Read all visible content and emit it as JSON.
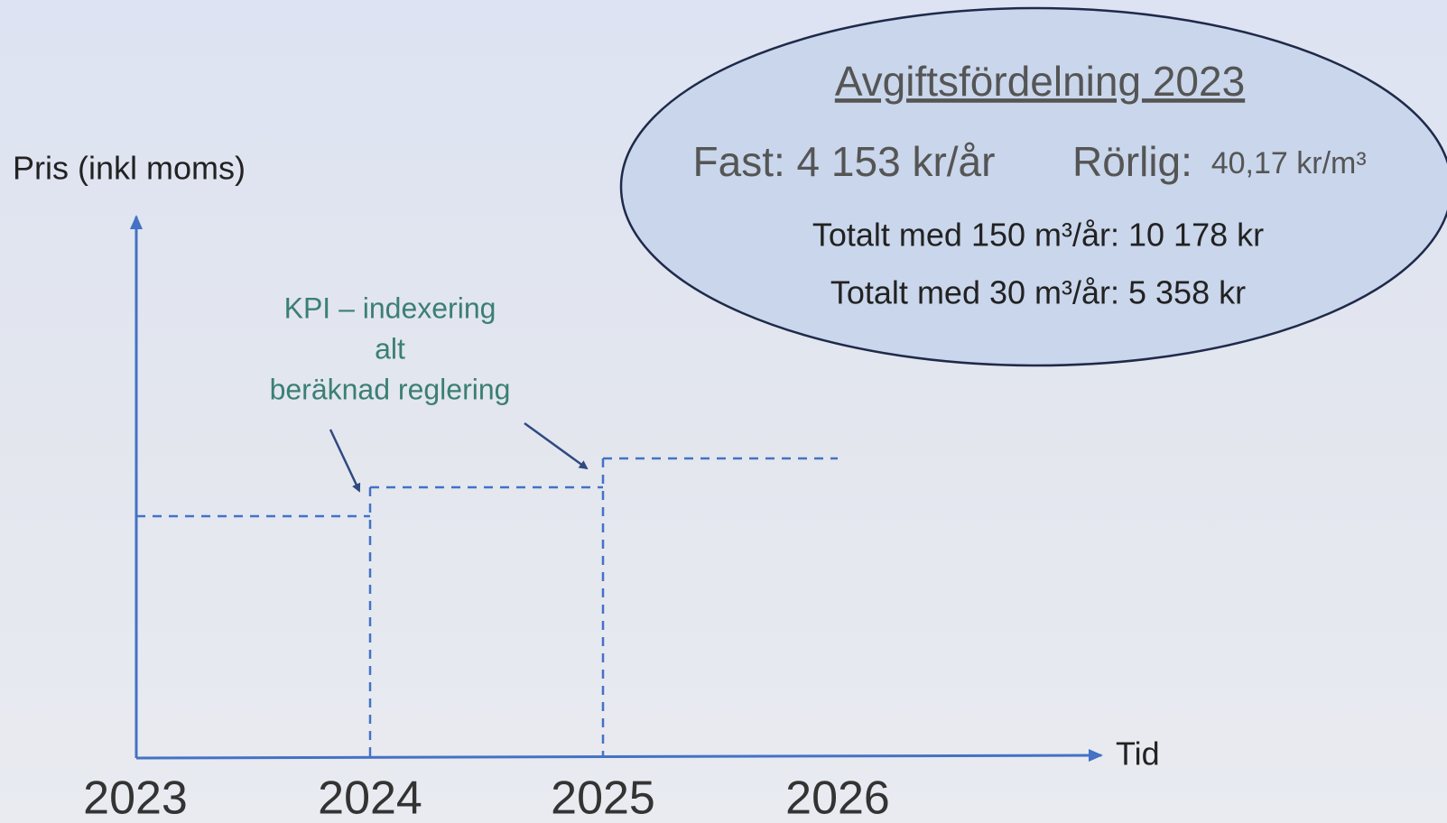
{
  "axes": {
    "y_label": "Pris (inkl moms)",
    "x_label": "Tid",
    "years": [
      "2023",
      "2024",
      "2025",
      "2026"
    ]
  },
  "annotation": {
    "lines": [
      "KPI – indexering",
      "alt",
      "beräknad reglering"
    ]
  },
  "info": {
    "title": "Avgiftsfördelning 2023",
    "fixed": "Fast: 4 153 kr/år",
    "variable_label": "Rörlig:",
    "variable_value": "40,17 kr/m³",
    "totals": [
      "Totalt med 150 m³/år: 10 178 kr",
      "Totalt med 30 m³/år: 5 358 kr"
    ]
  }
}
